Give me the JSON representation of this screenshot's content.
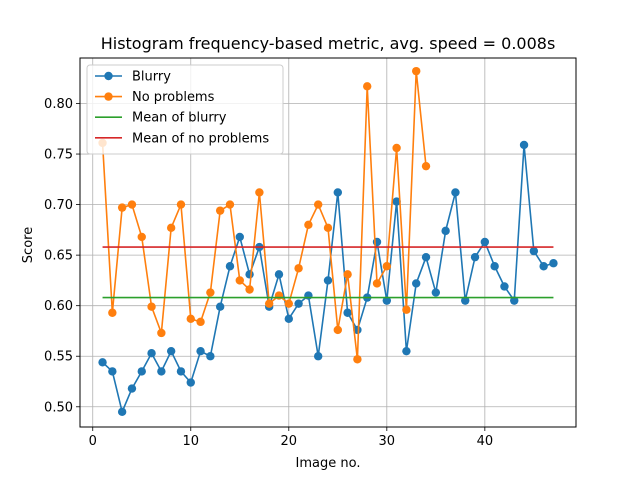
{
  "chart_data": {
    "type": "line",
    "title": "Histogram frequency-based metric, avg. speed = 0.008s",
    "xlabel": "Image no.",
    "ylabel": "Score",
    "xlim": [
      -1.3,
      49.3
    ],
    "ylim": [
      0.48,
      0.845
    ],
    "xticks": [
      0,
      10,
      20,
      30,
      40
    ],
    "xtick_labels": [
      "0",
      "10",
      "20",
      "30",
      "40"
    ],
    "yticks": [
      0.5,
      0.55,
      0.6,
      0.65,
      0.7,
      0.75,
      0.8
    ],
    "ytick_labels": [
      "0.50",
      "0.55",
      "0.60",
      "0.65",
      "0.70",
      "0.75",
      "0.80"
    ],
    "grid": true,
    "legend_position": "top-left",
    "series": [
      {
        "name": "Blurry",
        "color": "#1f77b4",
        "marker": "circle",
        "x": [
          1,
          2,
          3,
          4,
          5,
          6,
          7,
          8,
          9,
          10,
          11,
          12,
          13,
          14,
          15,
          16,
          17,
          18,
          19,
          20,
          21,
          22,
          23,
          24,
          25,
          26,
          27,
          28,
          29,
          30,
          31,
          32,
          33,
          34,
          35,
          36,
          37,
          38,
          39,
          40,
          41,
          42,
          43,
          44,
          45,
          46,
          47
        ],
        "values": [
          0.544,
          0.535,
          0.495,
          0.518,
          0.535,
          0.553,
          0.535,
          0.555,
          0.535,
          0.524,
          0.555,
          0.55,
          0.599,
          0.639,
          0.668,
          0.631,
          0.658,
          0.599,
          0.631,
          0.587,
          0.602,
          0.61,
          0.55,
          0.625,
          0.712,
          0.593,
          0.576,
          0.608,
          0.663,
          0.605,
          0.703,
          0.555,
          0.622,
          0.648,
          0.613,
          0.674,
          0.712,
          0.605,
          0.648,
          0.663,
          0.639,
          0.619,
          0.605,
          0.759,
          0.654,
          0.639,
          0.642
        ]
      },
      {
        "name": "No problems",
        "color": "#ff7f0e",
        "marker": "circle",
        "x": [
          1,
          2,
          3,
          4,
          5,
          6,
          7,
          8,
          9,
          10,
          11,
          12,
          13,
          14,
          15,
          16,
          17,
          18,
          19,
          20,
          21,
          22,
          23,
          24,
          25,
          26,
          27,
          28,
          29,
          30,
          31,
          32,
          33,
          34
        ],
        "values": [
          0.761,
          0.593,
          0.697,
          0.7,
          0.668,
          0.599,
          0.573,
          0.677,
          0.7,
          0.587,
          0.584,
          0.613,
          0.694,
          0.7,
          0.625,
          0.616,
          0.712,
          0.602,
          0.61,
          0.602,
          0.637,
          0.68,
          0.7,
          0.677,
          0.576,
          0.631,
          0.547,
          0.817,
          0.622,
          0.639,
          0.756,
          0.596,
          0.832,
          0.738
        ]
      },
      {
        "name": "Mean of blurry",
        "color": "#2ca02c",
        "marker": "none",
        "x": [
          1,
          47
        ],
        "values": [
          0.608,
          0.608
        ]
      },
      {
        "name": "Mean of no problems",
        "color": "#d62728",
        "marker": "none",
        "x": [
          1,
          47
        ],
        "values": [
          0.658,
          0.658
        ]
      }
    ]
  }
}
